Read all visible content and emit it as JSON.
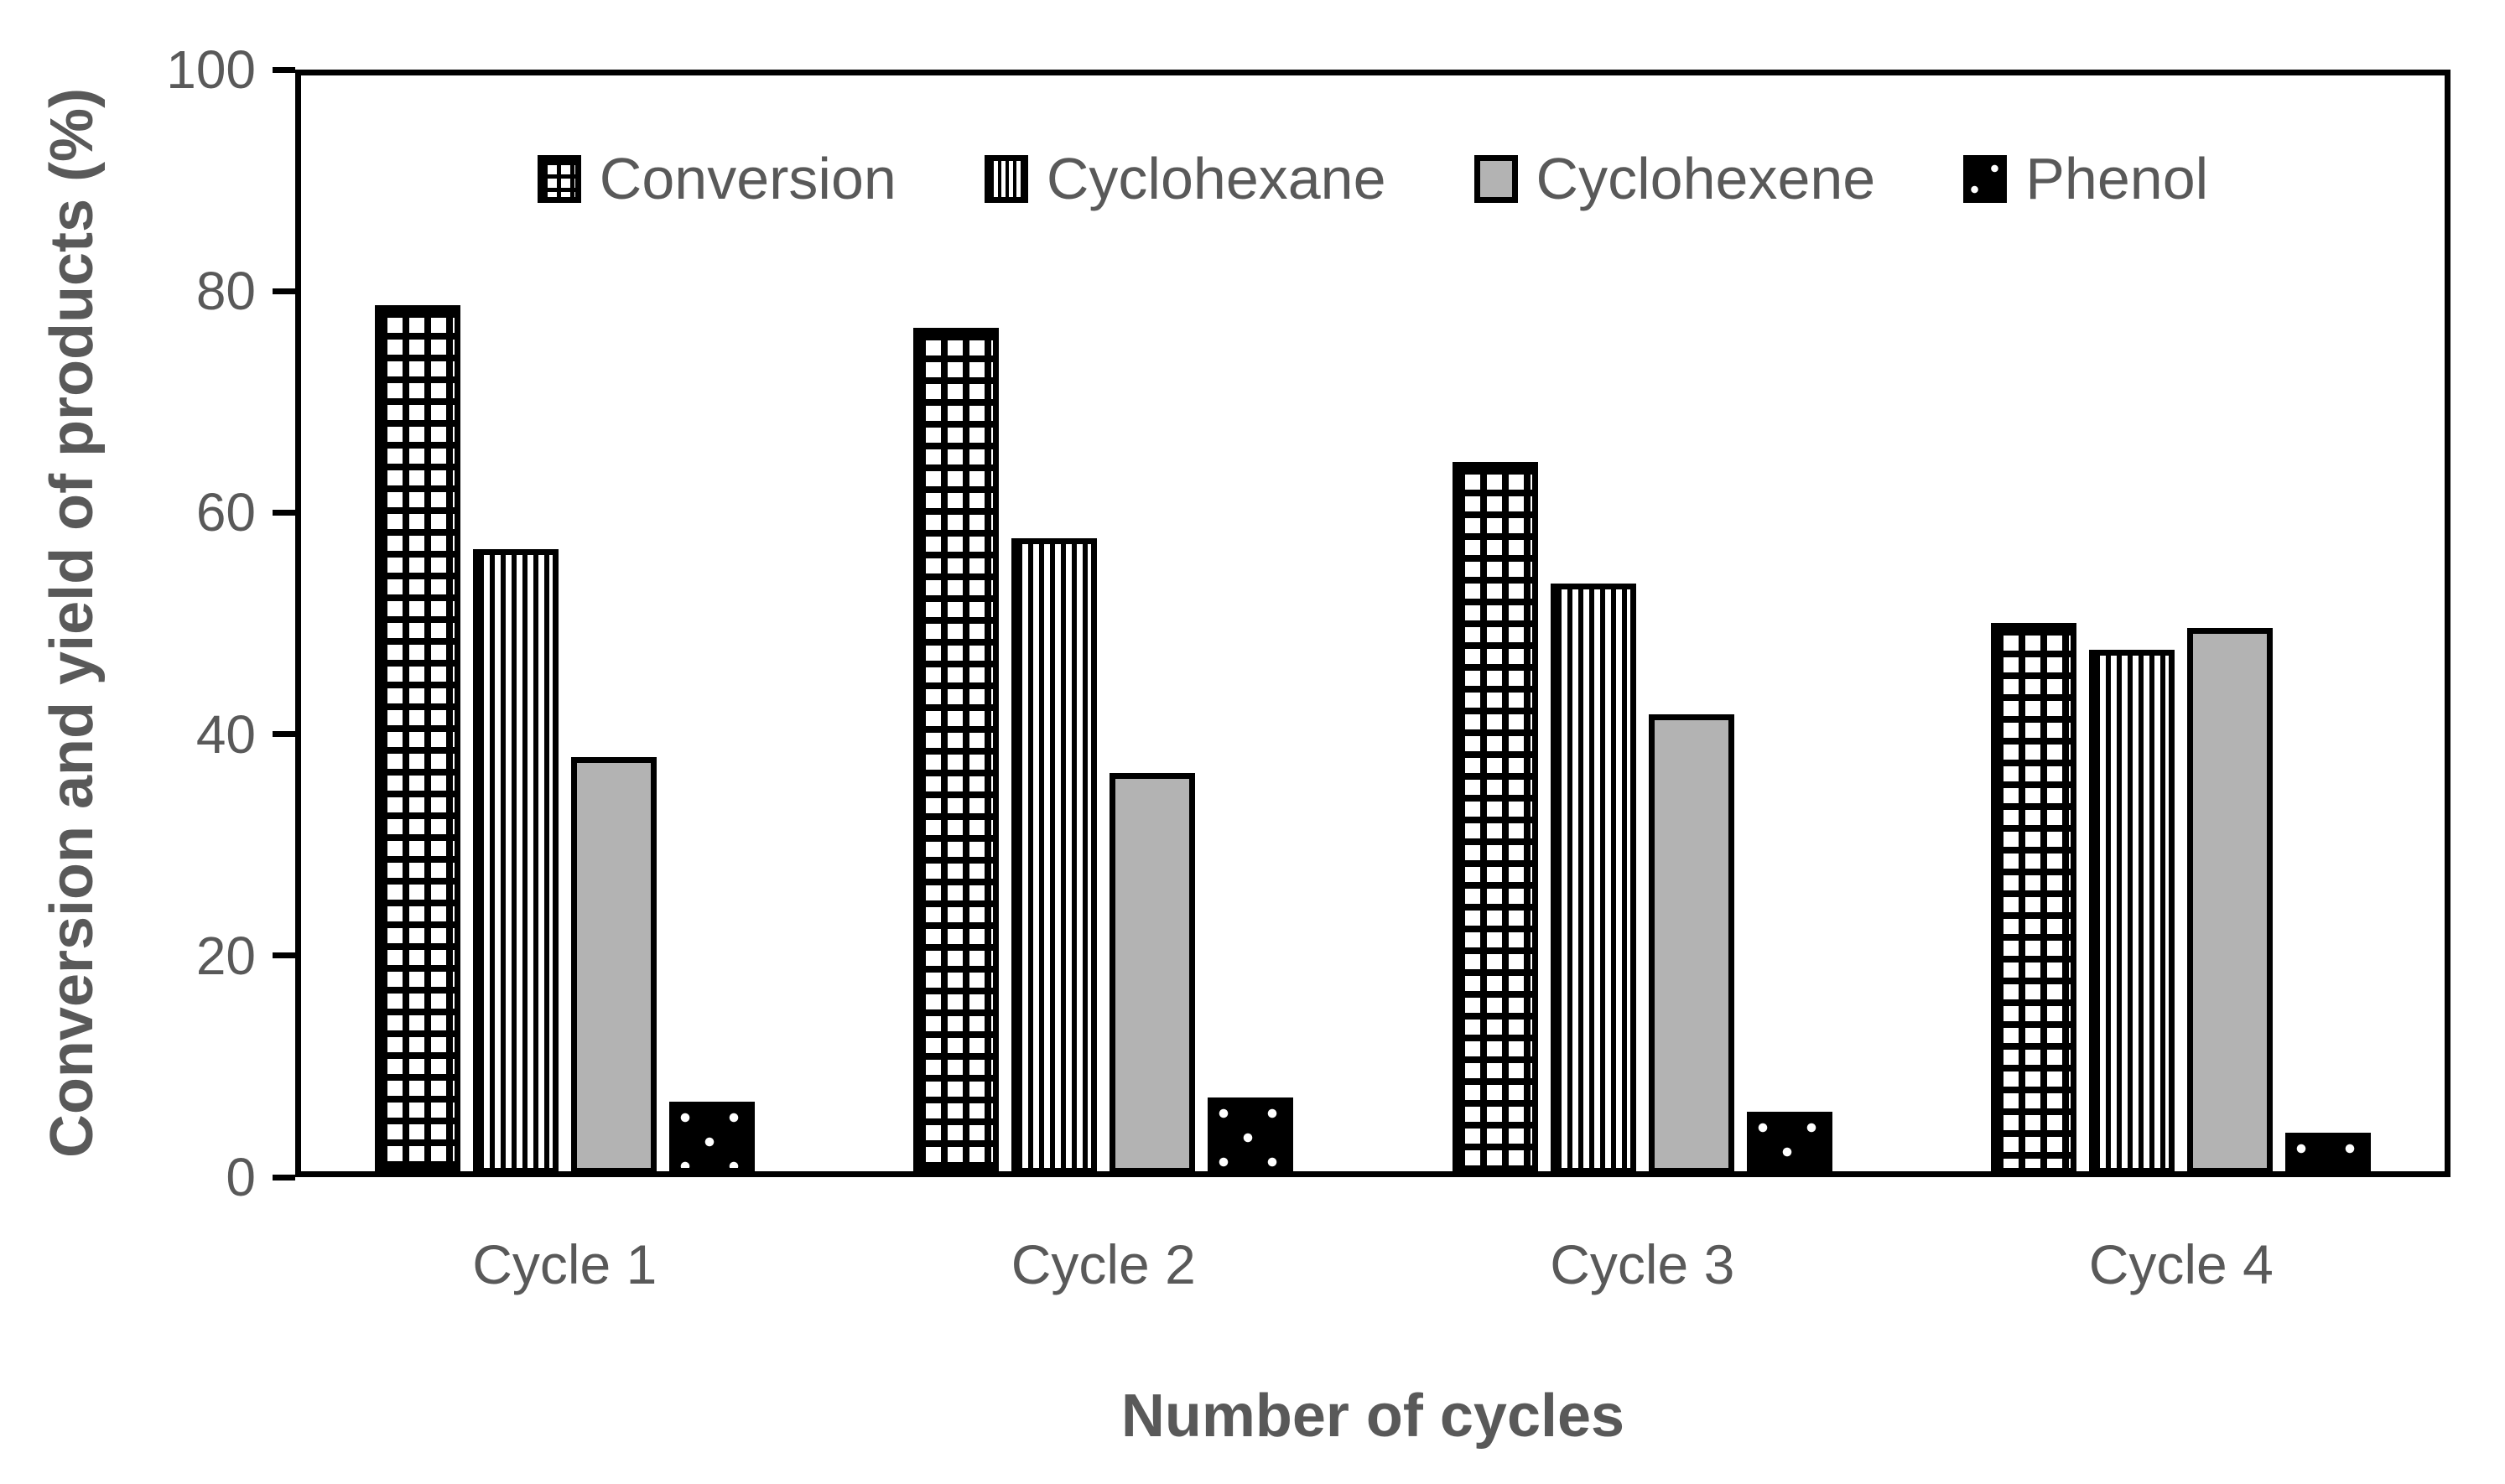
{
  "chart_data": {
    "type": "bar",
    "title": "",
    "categories": [
      "Cycle 1",
      "Cycle 2",
      "Cycle 3",
      "Cycle 4"
    ],
    "series": [
      {
        "name": "Conversion",
        "pattern": "checker-grid",
        "values": [
          78.4,
          76.4,
          64.3,
          49.7
        ]
      },
      {
        "name": "Cyclohexane",
        "pattern": "vertical-stripes",
        "values": [
          56.4,
          57.4,
          53.3,
          47.3
        ]
      },
      {
        "name": "Cyclohexene",
        "pattern": "solid-gray",
        "values": [
          37.6,
          36.2,
          41.5,
          49.3
        ]
      },
      {
        "name": "Phenol",
        "pattern": "black-white-dots",
        "values": [
          6.5,
          6.9,
          5.6,
          3.7
        ]
      }
    ],
    "xlabel": "Number of cycles",
    "ylabel": "Conversion and yield of products (%)",
    "ylim": [
      0,
      100
    ],
    "yticks": [
      0,
      20,
      40,
      60,
      80,
      100
    ],
    "grid": false,
    "legend_position": "top-inside-horizontal",
    "colors": {
      "bar_gray": "#b3b3b3",
      "text": "#595959",
      "line": "#000000",
      "background": "#ffffff"
    }
  }
}
